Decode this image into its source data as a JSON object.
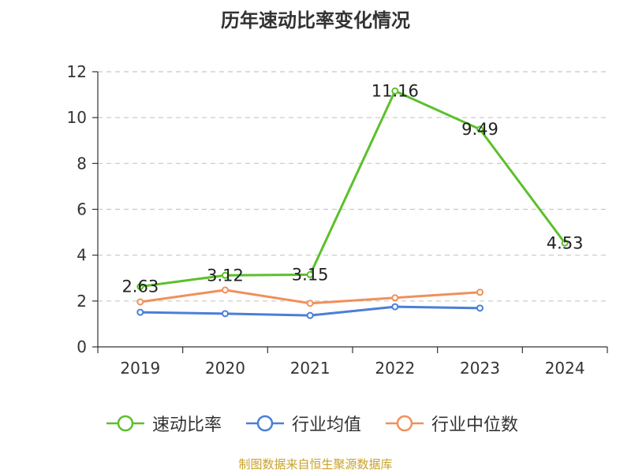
{
  "source_note": "制图数据来自恒生聚源数据库",
  "chart_data": {
    "type": "line",
    "title": "历年速动比率变化情况",
    "xlabel": "",
    "ylabel": "",
    "categories": [
      "2019",
      "2020",
      "2021",
      "2022",
      "2023",
      "2024"
    ],
    "ylim": [
      0,
      12
    ],
    "yticks": [
      0,
      2,
      4,
      6,
      8,
      10,
      12
    ],
    "grid": true,
    "legend_position": "bottom",
    "series": [
      {
        "name": "速动比率",
        "color": "#5cc02a",
        "values": [
          2.63,
          3.12,
          3.15,
          11.16,
          9.49,
          4.53
        ],
        "labels": [
          "2.63",
          "3.12",
          "3.15",
          "11.16",
          "9.49",
          "4.53"
        ]
      },
      {
        "name": "行业均值",
        "color": "#4a7fd8",
        "values": [
          1.51,
          1.45,
          1.37,
          1.75,
          1.69,
          null
        ]
      },
      {
        "name": "行业中位数",
        "color": "#f0905a",
        "values": [
          1.96,
          2.48,
          1.9,
          2.14,
          2.38,
          null
        ]
      }
    ]
  }
}
